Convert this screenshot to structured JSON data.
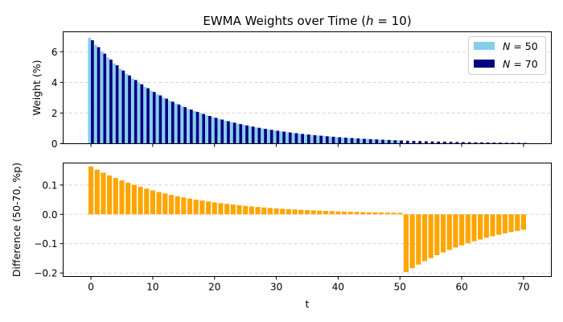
{
  "chart_data": {
    "type": "bar",
    "title": "EWMA Weights over Time (h = 10)",
    "title_parts": {
      "prefix": "EWMA Weights over Time (",
      "var": "h",
      "suffix": " = 10)"
    },
    "xlabel": "t",
    "xlim": [
      -4.5,
      74.5
    ],
    "xticks": [
      0,
      10,
      20,
      30,
      40,
      50,
      60,
      70
    ],
    "grid": "y-dashed",
    "legend_location": "upper right",
    "panels": [
      {
        "ylabel": "Weight (%)",
        "ylim": [
          0,
          7.3
        ],
        "yticks": [
          0,
          2,
          4,
          6
        ],
        "series": [
          {
            "name": "N = 50",
            "legend": {
              "var": "N",
              "suffix": " = 50"
            },
            "color": "#87ceeb",
            "formula": "100 * (1 - 2^(-1/h)) * 2^(-t/h) / (1 - 2^(-N/h)) for t = 0..N",
            "h": 10,
            "N": 50
          },
          {
            "name": "N = 70",
            "legend": {
              "var": "N",
              "suffix": " = 70"
            },
            "color": "#000080",
            "formula": "100 * (1 - 2^(-1/h)) * 2^(-t/h) / (1 - 2^(-N/h)) for t = 0..N",
            "h": 10,
            "N": 70
          }
        ]
      },
      {
        "ylabel": "Difference (50-70, %p)",
        "ylim": [
          -0.212,
          0.175
        ],
        "yticks": [
          -0.2,
          -0.1,
          0.0,
          0.1
        ],
        "ytick_labels": [
          "−0.2",
          "−0.1",
          "0.0",
          "0.1"
        ],
        "series": [
          {
            "name": "",
            "color": "#ffa500",
            "formula": "weight(N=50) - weight(N=70) for t = 0..70 (weight(N=50) = 0 for t > 50)"
          }
        ]
      }
    ]
  }
}
